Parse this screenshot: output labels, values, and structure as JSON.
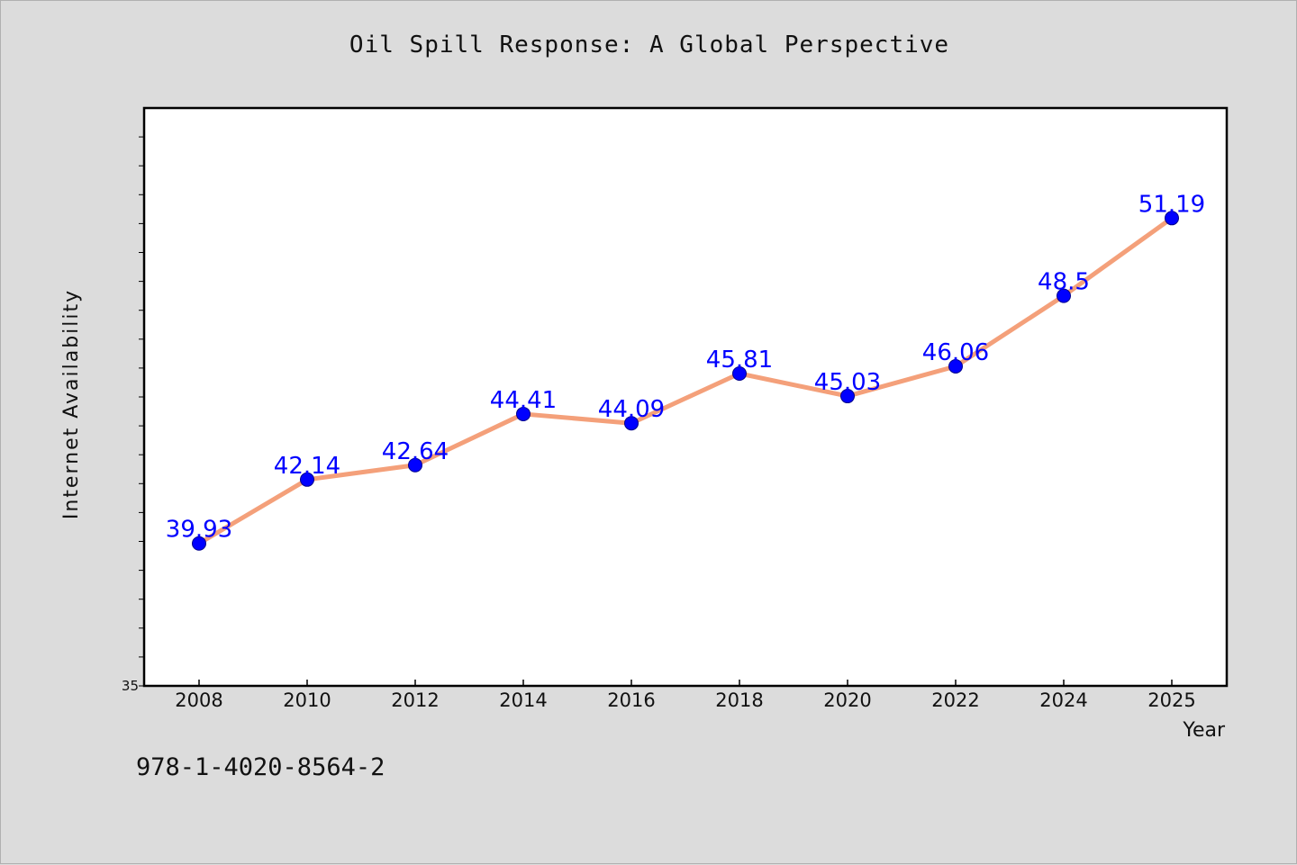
{
  "chart_data": {
    "type": "line",
    "title": "Oil Spill Response: A Global Perspective",
    "xlabel": "Year",
    "ylabel": "Internet Availability",
    "categories": [
      "2008",
      "2010",
      "2012",
      "2014",
      "2016",
      "2018",
      "2020",
      "2022",
      "2024",
      "2025"
    ],
    "values": [
      39.93,
      42.14,
      42.64,
      44.41,
      44.09,
      45.81,
      45.03,
      46.06,
      48.5,
      51.19
    ],
    "data_labels": [
      "39.93",
      "42.14",
      "42.64",
      "44.41",
      "44.09",
      "45.81",
      "45.03",
      "46.06",
      "48.5",
      "51.19"
    ],
    "y_tick_label": "35",
    "ylim": [
      35,
      55
    ],
    "grid": false,
    "legend": "none",
    "line_color": "#f4a07a",
    "marker_color": "#0000ff",
    "label_color": "#0000ff"
  },
  "footer": {
    "code": "978-1-4020-8564-2"
  }
}
